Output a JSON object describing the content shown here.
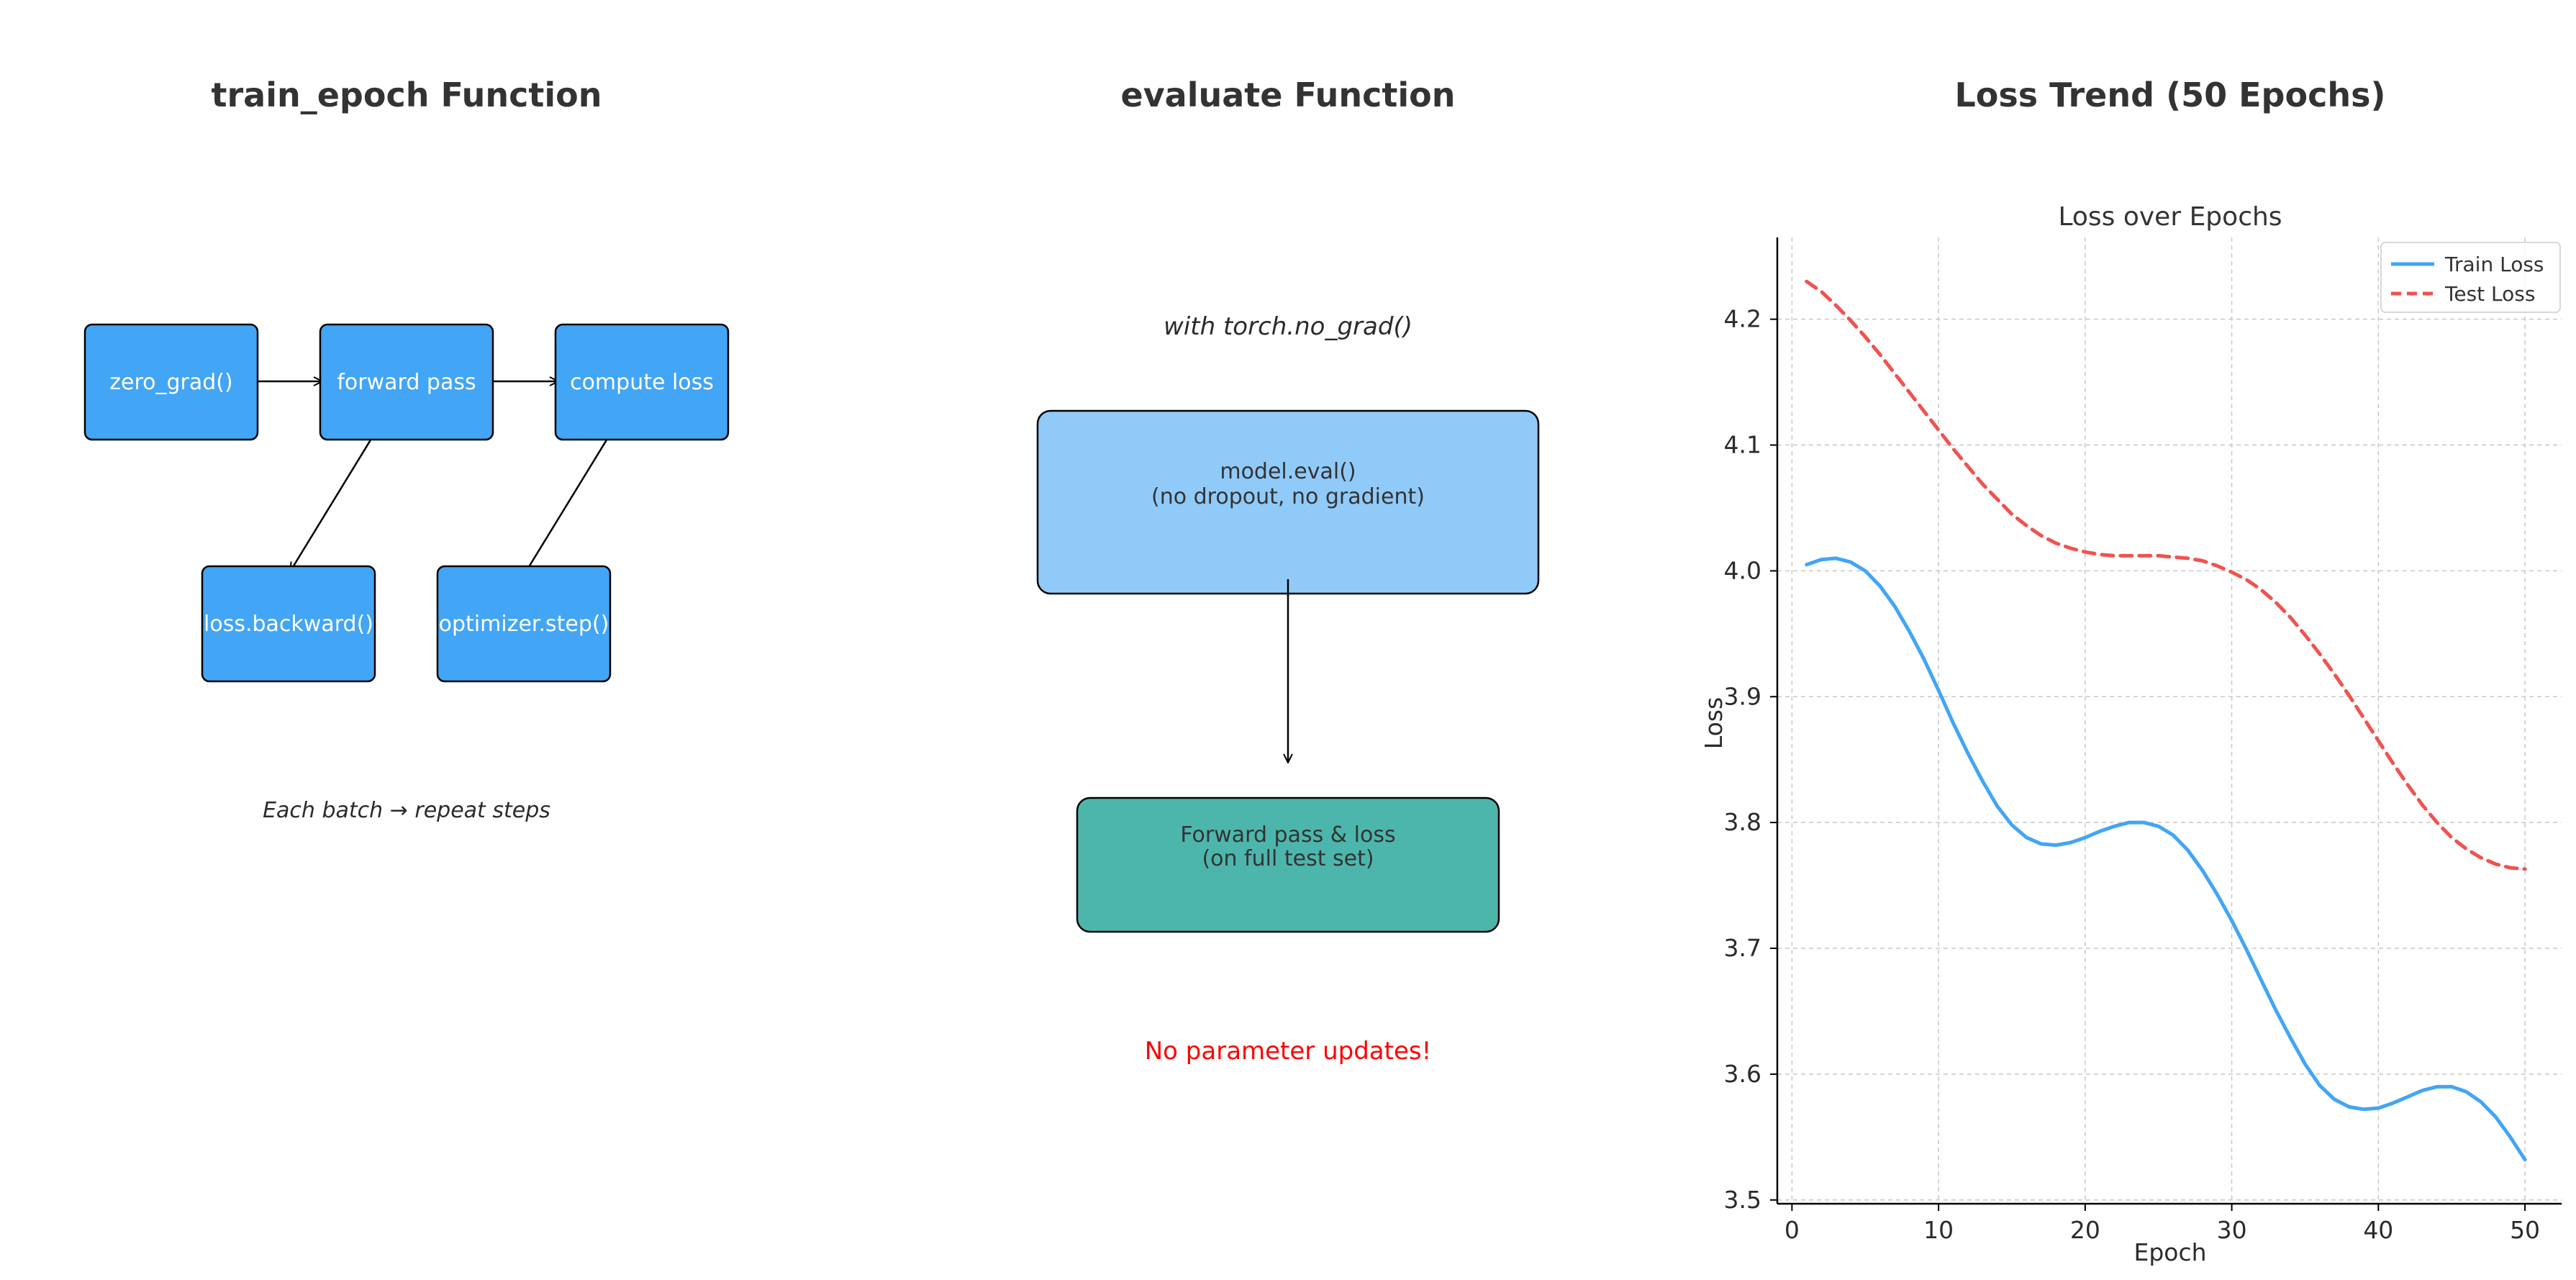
{
  "colors": {
    "box_blue": "#42A5F5",
    "box_light_blue": "#90CAF9",
    "box_teal": "#4DB6AC",
    "warning": "#FF0000",
    "train_line": "#42A5F5",
    "test_line": "#EF5350"
  },
  "left_panel": {
    "title": "train_epoch Function",
    "steps": {
      "zero_grad": "zero_grad()",
      "forward": "forward pass",
      "loss": "compute loss",
      "backward": "loss.backward()",
      "step": "optimizer.step()"
    },
    "note": "Each batch → repeat steps"
  },
  "middle_panel": {
    "title": "evaluate Function",
    "context": "with torch.no_grad()",
    "eval_box": {
      "line1": "model.eval()",
      "line2": "(no dropout, no gradient)"
    },
    "forward_box": {
      "line1": "Forward pass & loss",
      "line2": "(on full test set)"
    },
    "warning": "No parameter updates!"
  },
  "right_panel": {
    "title": "Loss Trend (50 Epochs)"
  },
  "chart_data": {
    "type": "line",
    "title": "Loss over Epochs",
    "xlabel": "Epoch",
    "ylabel": "Loss",
    "xlim": [
      -1,
      52.5
    ],
    "ylim": [
      3.497,
      4.265
    ],
    "xticks": [
      0,
      10,
      20,
      30,
      40,
      50
    ],
    "yticks": [
      3.5,
      3.6,
      3.7,
      3.8,
      3.9,
      4.0,
      4.1,
      4.2
    ],
    "xtick_labels": [
      "0",
      "10",
      "20",
      "30",
      "40",
      "50"
    ],
    "ytick_labels": [
      "3.5",
      "3.6",
      "3.7",
      "3.8",
      "3.9",
      "4.0",
      "4.1",
      "4.2"
    ],
    "grid": true,
    "legend": "top-right",
    "x": [
      1,
      2,
      3,
      4,
      5,
      6,
      7,
      8,
      9,
      10,
      11,
      12,
      13,
      14,
      15,
      16,
      17,
      18,
      19,
      20,
      21,
      22,
      23,
      24,
      25,
      26,
      27,
      28,
      29,
      30,
      31,
      32,
      33,
      34,
      35,
      36,
      37,
      38,
      39,
      40,
      41,
      42,
      43,
      44,
      45,
      46,
      47,
      48,
      49,
      50
    ],
    "series": [
      {
        "name": "Train Loss",
        "style": "solid",
        "color": "#42A5F5",
        "values": [
          4.005,
          4.009,
          4.01,
          4.007,
          4.0,
          3.988,
          3.972,
          3.952,
          3.93,
          3.905,
          3.879,
          3.855,
          3.833,
          3.813,
          3.798,
          3.788,
          3.783,
          3.782,
          3.784,
          3.788,
          3.793,
          3.797,
          3.8,
          3.8,
          3.797,
          3.79,
          3.778,
          3.762,
          3.743,
          3.722,
          3.699,
          3.675,
          3.651,
          3.629,
          3.608,
          3.591,
          3.58,
          3.574,
          3.572,
          3.573,
          3.577,
          3.582,
          3.587,
          3.59,
          3.59,
          3.586,
          3.578,
          3.566,
          3.55,
          3.532
        ]
      },
      {
        "name": "Test Loss",
        "style": "dashed",
        "color": "#EF5350",
        "values": [
          4.23,
          4.222,
          4.211,
          4.199,
          4.186,
          4.172,
          4.157,
          4.142,
          4.127,
          4.112,
          4.097,
          4.083,
          4.069,
          4.057,
          4.045,
          4.036,
          4.028,
          4.022,
          4.018,
          4.015,
          4.013,
          4.012,
          4.012,
          4.012,
          4.012,
          4.011,
          4.01,
          4.008,
          4.004,
          3.999,
          3.993,
          3.985,
          3.975,
          3.963,
          3.949,
          3.934,
          3.918,
          3.901,
          3.883,
          3.865,
          3.847,
          3.83,
          3.814,
          3.8,
          3.788,
          3.779,
          3.772,
          3.767,
          3.764,
          3.763
        ]
      }
    ]
  }
}
